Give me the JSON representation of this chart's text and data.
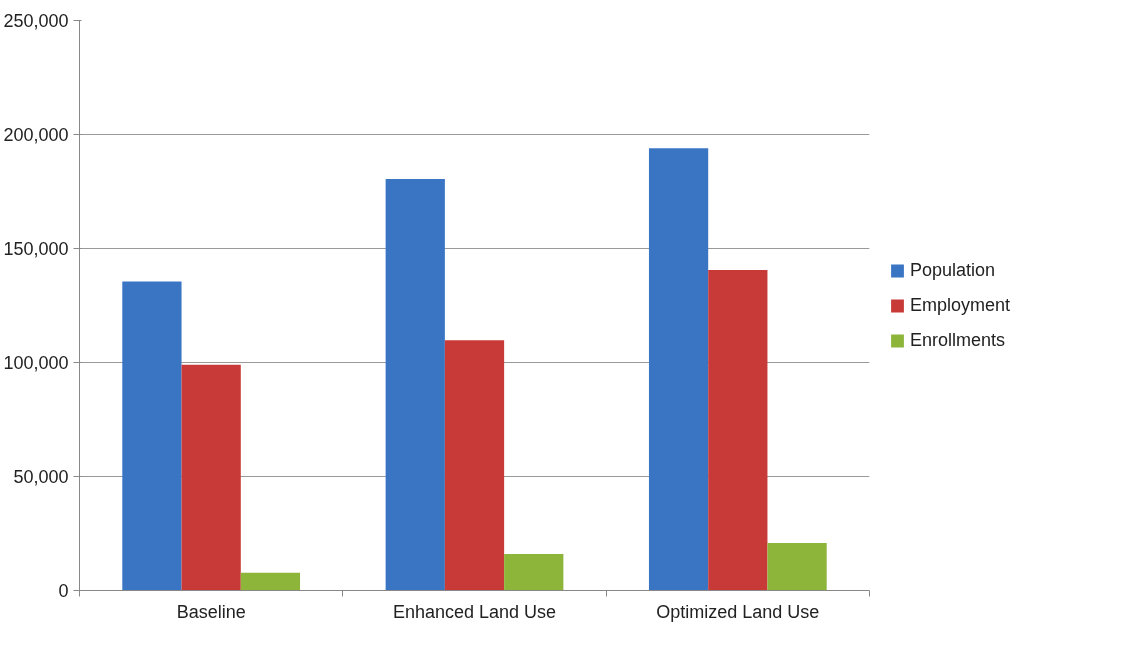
{
  "chart_data": {
    "type": "bar",
    "categories": [
      "Baseline",
      "Enhanced Land Use",
      "Optimized Land Use"
    ],
    "series": [
      {
        "name": "Population",
        "color": "#3a75c4",
        "values": [
          135500,
          180500,
          194000
        ]
      },
      {
        "name": "Employment",
        "color": "#c83a37",
        "values": [
          99000,
          109800,
          140600
        ]
      },
      {
        "name": "Enrollments",
        "color": "#8db53a",
        "values": [
          7800,
          16000,
          20800
        ]
      }
    ],
    "ylim": [
      0,
      250000
    ],
    "yticks": [
      {
        "value": 0,
        "label": "0"
      },
      {
        "value": 50000,
        "label": "50,000"
      },
      {
        "value": 100000,
        "label": "100,000"
      },
      {
        "value": 150000,
        "label": "150,000"
      },
      {
        "value": 200000,
        "label": "200,000"
      },
      {
        "value": 250000,
        "label": "250,000"
      }
    ],
    "grid": "y",
    "legend": "right"
  }
}
